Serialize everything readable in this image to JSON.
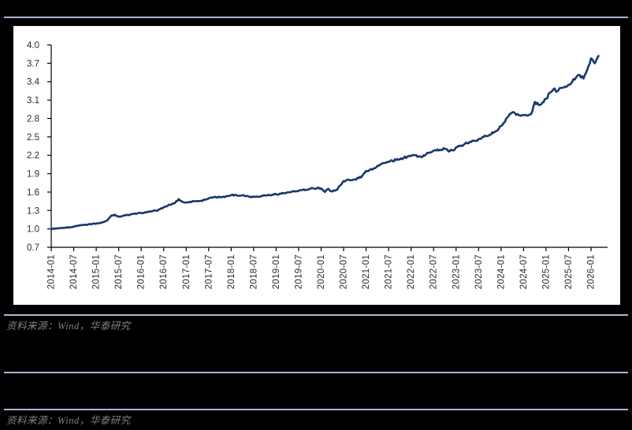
{
  "colors": {
    "page_bg": "#000000",
    "panel_bg": "#ffffff",
    "separator": "#a9b6cf",
    "source_text": "#80808a",
    "line": "#17386b",
    "axis": "#000000",
    "tick_label": "#2b2b2b"
  },
  "figure1": {
    "source_note": "资料来源：Wind，华泰研究"
  },
  "figure2": {
    "source_note": "资料来源：Wind，华泰研究"
  },
  "chart_data": {
    "type": "line",
    "title": "",
    "xlabel": "",
    "ylabel": "",
    "grid": false,
    "legend": null,
    "ylim": [
      0.7,
      4.0
    ],
    "y_ticks": [
      0.7,
      1.0,
      1.3,
      1.6,
      1.9,
      2.2,
      2.5,
      2.8,
      3.1,
      3.4,
      3.7,
      4.0
    ],
    "x_start": "2014-01",
    "x_freq": "monthly",
    "x_tick_labels": [
      "2014-01",
      "2014-07",
      "2015-01",
      "2015-07",
      "2016-01",
      "2016-07",
      "2017-01",
      "2017-07",
      "2018-01",
      "2018-07",
      "2019-01",
      "2019-07",
      "2020-01",
      "2020-07",
      "2021-01",
      "2021-07",
      "2022-01",
      "2022-07",
      "2023-01",
      "2023-07",
      "2024-01",
      "2024-07",
      "2025-01",
      "2025-07",
      "2026-01"
    ],
    "values": [
      1.0,
      1.004,
      1.008,
      1.013,
      1.018,
      1.028,
      1.04,
      1.05,
      1.06,
      1.068,
      1.076,
      1.083,
      1.09,
      1.098,
      1.112,
      1.14,
      1.215,
      1.232,
      1.2,
      1.212,
      1.222,
      1.232,
      1.246,
      1.253,
      1.26,
      1.27,
      1.278,
      1.288,
      1.296,
      1.322,
      1.355,
      1.376,
      1.396,
      1.422,
      1.487,
      1.44,
      1.43,
      1.441,
      1.449,
      1.455,
      1.459,
      1.476,
      1.496,
      1.508,
      1.515,
      1.519,
      1.526,
      1.536,
      1.549,
      1.556,
      1.541,
      1.549,
      1.536,
      1.526,
      1.521,
      1.529,
      1.536,
      1.546,
      1.553,
      1.559,
      1.566,
      1.576,
      1.579,
      1.596,
      1.599,
      1.609,
      1.619,
      1.636,
      1.639,
      1.649,
      1.659,
      1.669,
      1.66,
      1.601,
      1.651,
      1.611,
      1.631,
      1.701,
      1.781,
      1.801,
      1.791,
      1.806,
      1.826,
      1.866,
      1.946,
      1.966,
      1.986,
      2.026,
      2.056,
      2.076,
      2.091,
      2.111,
      2.121,
      2.136,
      2.156,
      2.176,
      2.191,
      2.201,
      2.181,
      2.171,
      2.216,
      2.246,
      2.276,
      2.296,
      2.286,
      2.306,
      2.261,
      2.281,
      2.331,
      2.351,
      2.371,
      2.396,
      2.416,
      2.436,
      2.466,
      2.496,
      2.511,
      2.536,
      2.566,
      2.601,
      2.68,
      2.74,
      2.84,
      2.9,
      2.86,
      2.85,
      2.855,
      2.845,
      2.87,
      3.07,
      3.02,
      3.06,
      3.12,
      3.22,
      3.28,
      3.24,
      3.3,
      3.32,
      3.35,
      3.4,
      3.47,
      3.51,
      3.45,
      3.6,
      3.78,
      3.7,
      3.82
    ]
  }
}
